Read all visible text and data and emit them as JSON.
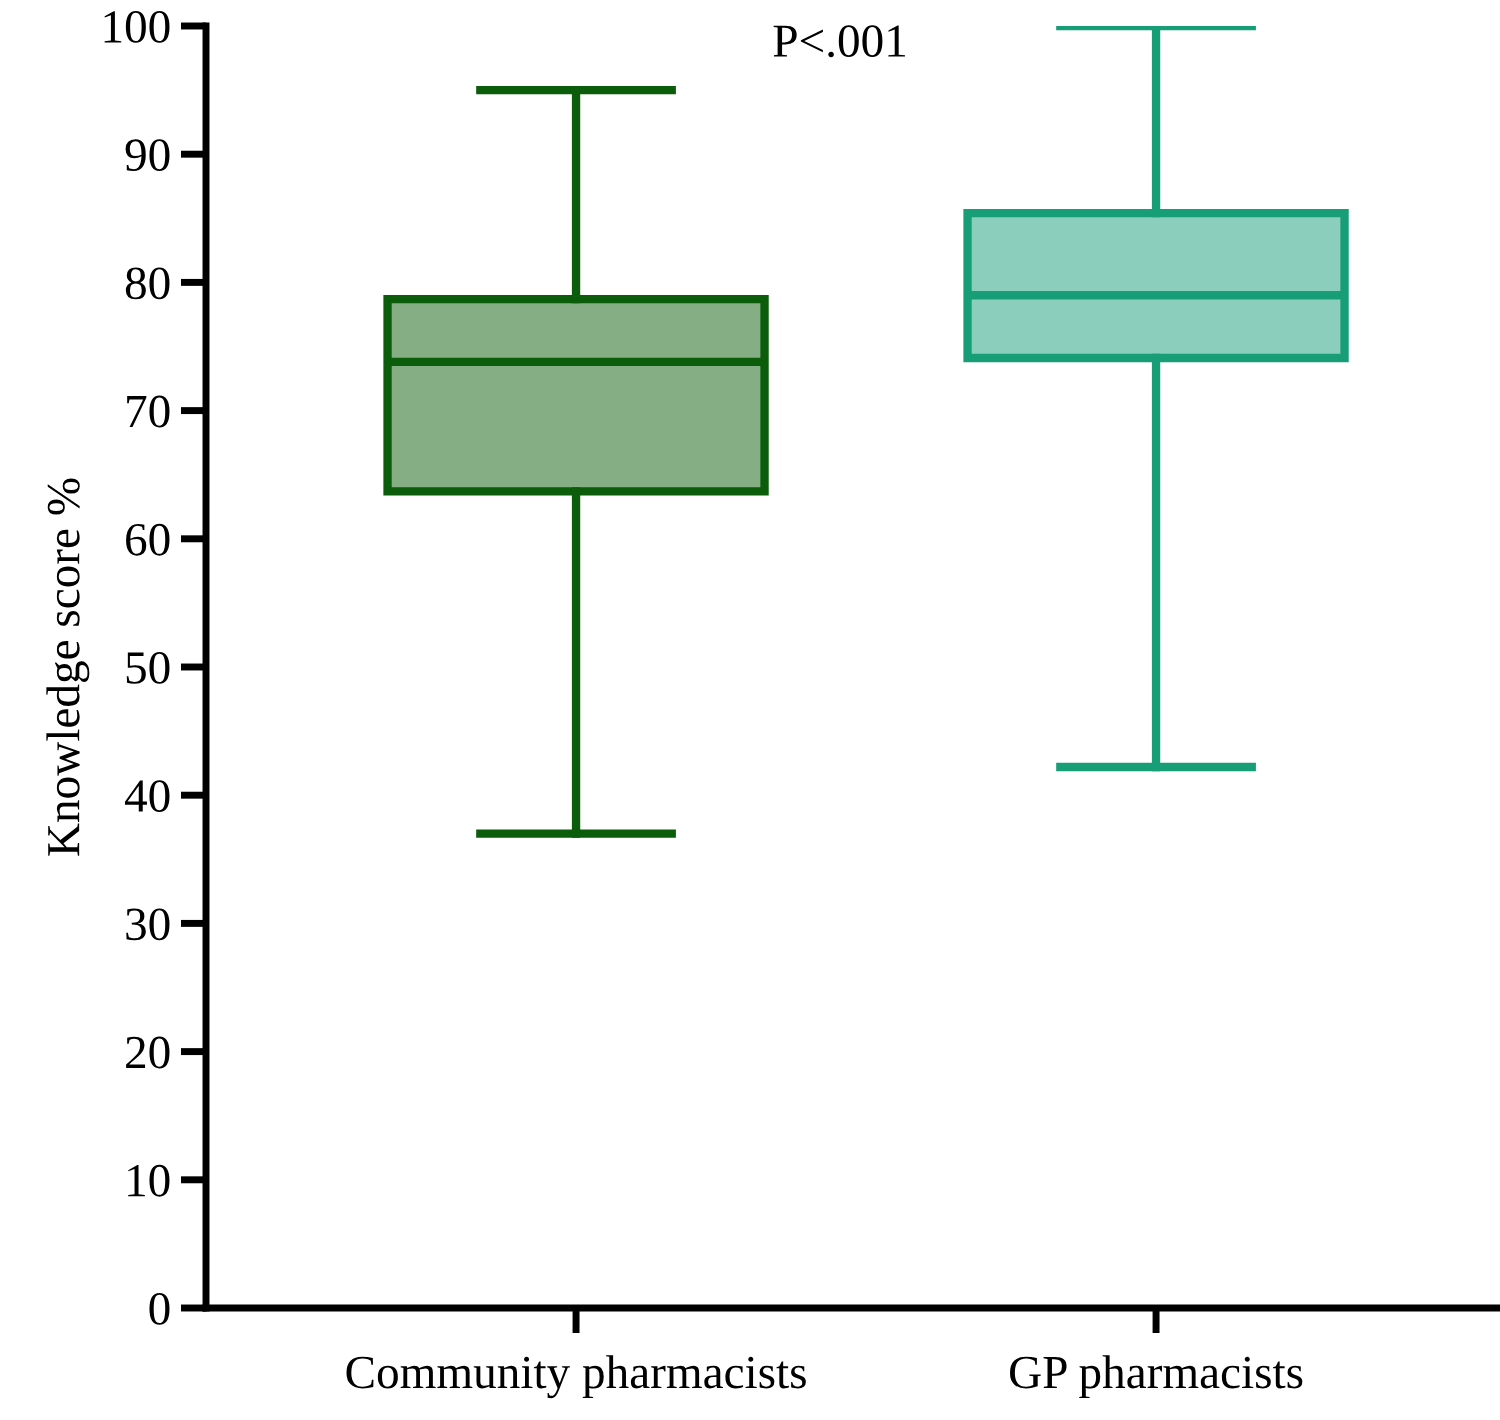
{
  "chart_data": {
    "type": "box",
    "ylabel": "Knowledge score %",
    "categories": [
      "Community pharmacists",
      "GP pharmacists"
    ],
    "boxes": [
      {
        "low": 37,
        "q1": 63.7,
        "median": 73.8,
        "q3": 78.7,
        "high": 95
      },
      {
        "low": 42.2,
        "q1": 74.1,
        "median": 79,
        "q3": 85.4,
        "high": 100
      }
    ],
    "colors": [
      "#0b5d0b",
      "#179e77"
    ],
    "ylim": [
      0,
      100
    ],
    "yticks": [
      0,
      10,
      20,
      30,
      40,
      50,
      60,
      70,
      80,
      90,
      100
    ],
    "grid": false,
    "legend": false,
    "annotations": [
      "P<.001"
    ]
  }
}
